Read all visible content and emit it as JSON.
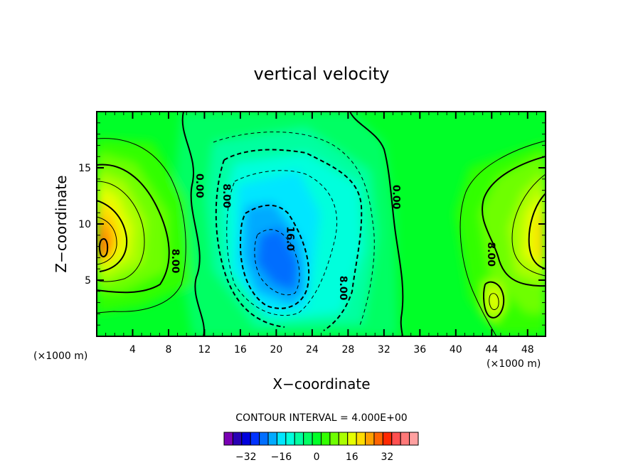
{
  "chart_data": {
    "type": "contour",
    "title": "vertical velocity",
    "xlabel": "X−coordinate",
    "ylabel": "Z−coordinate",
    "x_unit_left": "(×1000 m)",
    "x_unit_right": "(×1000 m)",
    "xlim": [
      0,
      50
    ],
    "ylim": [
      0,
      20
    ],
    "x_ticks": [
      4,
      8,
      12,
      16,
      20,
      24,
      28,
      32,
      36,
      40,
      44,
      48
    ],
    "y_ticks": [
      5,
      10,
      15
    ],
    "contour_interval_text": "CONTOUR INTERVAL = 4.000E+00",
    "contour_interval": 4,
    "contour_labels": [
      {
        "text": "0.00",
        "x": 11.1,
        "y": 13.4
      },
      {
        "text": "8.00",
        "x": 14.1,
        "y": 12.5
      },
      {
        "text": "16.0",
        "x": 21.2,
        "y": 8.7
      },
      {
        "text": "8.00",
        "x": 27.1,
        "y": 4.3
      },
      {
        "text": "0.00",
        "x": 33.0,
        "y": 12.4
      },
      {
        "text": "8.00",
        "x": 8.4,
        "y": 6.7
      },
      {
        "text": "8.00",
        "x": 43.6,
        "y": 7.3
      }
    ],
    "colorbar": {
      "colors": [
        "#7a00b4",
        "#2800b4",
        "#0000dc",
        "#0032ff",
        "#006eff",
        "#00aaff",
        "#00e6ff",
        "#00ffdc",
        "#00ffa0",
        "#00ff64",
        "#00ff28",
        "#32ff00",
        "#6eff00",
        "#aaff00",
        "#e6ff00",
        "#ffdc00",
        "#ffa000",
        "#ff6400",
        "#ff2800",
        "#ff5050",
        "#ff7878",
        "#ffa0a0"
      ],
      "ticks": [
        "−32",
        "−16",
        "0",
        "16",
        "32"
      ]
    }
  }
}
